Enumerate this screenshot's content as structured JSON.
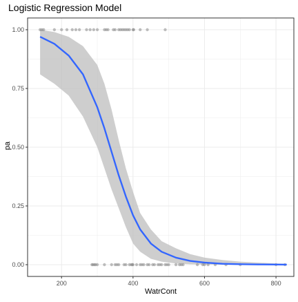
{
  "chart_data": {
    "type": "scatter",
    "title": "Logistic Regression Model",
    "xlabel": "WatrCont",
    "ylabel": "pa",
    "xlim": [
      105,
      850
    ],
    "ylim": [
      -0.05,
      1.05
    ],
    "xticks": [
      200,
      400,
      600,
      800
    ],
    "xtick_labels": [
      "200",
      "400",
      "600",
      "800"
    ],
    "yticks": [
      0,
      0.25,
      0.5,
      0.75,
      1
    ],
    "ytick_labels": [
      "0.00",
      "0.25",
      "0.50",
      "0.75",
      "1.00"
    ],
    "grid": true,
    "colors": {
      "curve": "#3366FF",
      "ribbon": "#BEBEBE",
      "points": "#808080",
      "grid": "#EBEBEB",
      "border": "#333333"
    },
    "points_y1": [
      140,
      145,
      150,
      180,
      200,
      215,
      230,
      240,
      250,
      270,
      280,
      290,
      300,
      320,
      325,
      330,
      345,
      350,
      360,
      365,
      370,
      375,
      380,
      385,
      390,
      400,
      402,
      420,
      440,
      490
    ],
    "points_y0": [
      285,
      288,
      292,
      295,
      300,
      320,
      340,
      350,
      355,
      360,
      375,
      380,
      390,
      395,
      398,
      400,
      410,
      420,
      425,
      430,
      440,
      445,
      455,
      460,
      470,
      475,
      480,
      490,
      495,
      500,
      520,
      530,
      535,
      540,
      580,
      595,
      600,
      610,
      630,
      660,
      700,
      800,
      825
    ],
    "fit_curve": {
      "x": [
        140,
        180,
        220,
        260,
        300,
        320,
        340,
        360,
        380,
        400,
        420,
        450,
        480,
        520,
        560,
        600,
        650,
        700,
        750,
        800,
        830
      ],
      "y": [
        0.97,
        0.94,
        0.89,
        0.81,
        0.67,
        0.58,
        0.48,
        0.38,
        0.29,
        0.21,
        0.15,
        0.09,
        0.055,
        0.03,
        0.016,
        0.009,
        0.004,
        0.002,
        0.001,
        0.0005,
        0.0003
      ],
      "lower": [
        0.81,
        0.77,
        0.72,
        0.63,
        0.5,
        0.41,
        0.32,
        0.24,
        0.16,
        0.09,
        0.055,
        0.025,
        0.013,
        0.005,
        0.002,
        0.001,
        0.0003,
        0.0001,
        0.0,
        0.0,
        0.0
      ],
      "upper": [
        1.0,
        0.99,
        0.97,
        0.93,
        0.85,
        0.77,
        0.66,
        0.53,
        0.41,
        0.31,
        0.22,
        0.15,
        0.1,
        0.07,
        0.045,
        0.03,
        0.02,
        0.013,
        0.009,
        0.005,
        0.004
      ]
    }
  }
}
